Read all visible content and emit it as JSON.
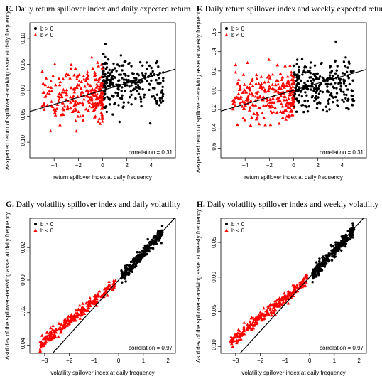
{
  "chart_data": [
    {
      "id": "E",
      "type": "scatter",
      "panel_letter": "E.",
      "title": "Daily return spillover index and daily expected returns",
      "xlabel": "return spillover index at daily frequency",
      "ylabel": "Δexpected return of spillover−receiving asset at daily frequency",
      "xlim": [
        -6,
        6
      ],
      "ylim": [
        -0.13,
        0.13
      ],
      "xticks": [
        -4,
        -2,
        0,
        2,
        4
      ],
      "yticks": [
        -0.1,
        -0.05,
        0.0,
        0.05,
        0.1
      ],
      "ytick_labels": [
        "−0.10",
        "−0.05",
        "0.00",
        "0.05",
        "0.10"
      ],
      "legend": {
        "position": "top-left",
        "entries": [
          "b > 0",
          "b < 0"
        ]
      },
      "annotation": "correlation = 0.31",
      "fit_line": {
        "slope": 0.0068,
        "intercept": 0.0
      },
      "series": [
        {
          "label": "b > 0",
          "marker": "circle",
          "color": "#000000",
          "x_range": [
            0,
            5
          ],
          "y_center": 0.015,
          "y_spread": 0.05,
          "slope": 0.0
        },
        {
          "label": "b < 0",
          "marker": "triangle",
          "color": "#ff0000",
          "x_range": [
            -5,
            0
          ],
          "y_center": -0.01,
          "y_spread": 0.055,
          "slope": 0.0
        }
      ],
      "fit_slope": 0.0068
    },
    {
      "id": "F",
      "type": "scatter",
      "panel_letter": "F.",
      "title": "Daily return spillover index and weekly expected returns",
      "xlabel": "return spillover index at daily frequency",
      "ylabel": "Δexpected return of spillover−receiving asset at weekly frequency",
      "xlim": [
        -6,
        6
      ],
      "ylim": [
        -0.7,
        0.7
      ],
      "xticks": [
        -4,
        -2,
        0,
        2,
        4
      ],
      "yticks": [
        -0.6,
        -0.4,
        -0.2,
        0.0,
        0.2,
        0.4,
        0.6
      ],
      "ytick_labels": [
        "−0.6",
        "−0.4",
        "−0.2",
        "0.0",
        "0.2",
        "0.4",
        "0.6"
      ],
      "legend": {
        "position": "top-left",
        "entries": [
          "b > 0",
          "b < 0"
        ]
      },
      "annotation": "correlation = 0.31",
      "fit_line": {
        "slope": 0.036,
        "intercept": 0.0
      },
      "series": [
        {
          "label": "b > 0",
          "marker": "circle",
          "color": "#000000",
          "x_range": [
            0,
            5
          ],
          "y_center": 0.05,
          "y_spread": 0.3,
          "slope": 0.0
        },
        {
          "label": "b < 0",
          "marker": "triangle",
          "color": "#ff0000",
          "x_range": [
            -5,
            0
          ],
          "y_center": -0.05,
          "y_spread": 0.3,
          "slope": 0.0
        }
      ]
    },
    {
      "id": "G",
      "type": "scatter",
      "panel_letter": "G.",
      "title": "Daily volatility spillover index and daily volatility",
      "xlabel": "volatility spillover index at daily frequency",
      "ylabel": "Δstd dev of the spillover−receiving asset at daily frequency",
      "xlim": [
        -3.6,
        2.3
      ],
      "ylim": [
        -0.045,
        0.038
      ],
      "xticks": [
        -3,
        -2,
        -1,
        0,
        1,
        2
      ],
      "yticks": [
        -0.04,
        -0.02,
        0.0,
        0.02
      ],
      "ytick_labels": [
        "−0.04",
        "−0.02",
        "0.00",
        "0.02"
      ],
      "legend": {
        "position": "top-left",
        "entries": [
          "b > 0",
          "b < 0"
        ]
      },
      "annotation": "correlation = 0.97",
      "fit_line": {
        "slope": 0.0168,
        "intercept": 0.0
      },
      "series": [
        {
          "label": "b > 0",
          "marker": "circle",
          "color": "#000000",
          "x_range": [
            0.1,
            1.8
          ],
          "y_center": 0.0,
          "y_spread": 0.004,
          "slope": 0.0165
        },
        {
          "label": "b < 0",
          "marker": "triangle",
          "color": "#ff0000",
          "x_range": [
            -3.2,
            -0.1
          ],
          "y_center": 0.0,
          "y_spread": 0.004,
          "slope": 0.0125
        }
      ]
    },
    {
      "id": "H",
      "type": "scatter",
      "panel_letter": "H.",
      "title": "Daily volatility spillover index and weekly volatility",
      "xlabel": "volatility spillover index at daily frequency",
      "ylabel": "Δstd dev of the spillover−receiving asset at weekly frequency",
      "xlim": [
        -3.6,
        2.3
      ],
      "ylim": [
        -0.11,
        0.085
      ],
      "xticks": [
        -3,
        -2,
        -1,
        0,
        1,
        2
      ],
      "yticks": [
        -0.1,
        -0.05,
        0.0,
        0.05
      ],
      "ytick_labels": [
        "−0.10",
        "−0.05",
        "0.00",
        "0.05"
      ],
      "legend": {
        "position": "top-left",
        "entries": [
          "b > 0",
          "b < 0"
        ]
      },
      "annotation": "correlation = 0.97",
      "fit_line": {
        "slope": 0.039,
        "intercept": 0.0
      },
      "series": [
        {
          "label": "b > 0",
          "marker": "circle",
          "color": "#000000",
          "x_range": [
            0.1,
            1.8
          ],
          "y_center": 0.0,
          "y_spread": 0.01,
          "slope": 0.038
        },
        {
          "label": "b < 0",
          "marker": "triangle",
          "color": "#ff0000",
          "x_range": [
            -3.2,
            -0.1
          ],
          "y_center": 0.0,
          "y_spread": 0.01,
          "slope": 0.029
        }
      ]
    }
  ]
}
